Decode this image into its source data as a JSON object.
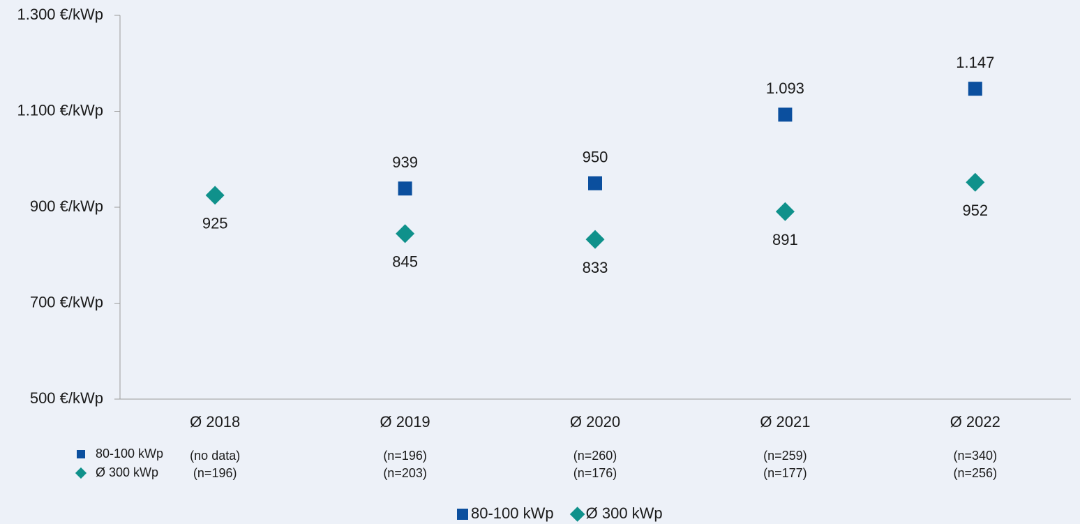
{
  "chart_data": {
    "type": "scatter",
    "categories": [
      "Ø 2018",
      "Ø 2019",
      "Ø 2020",
      "Ø 2021",
      "Ø 2022"
    ],
    "series": [
      {
        "name": "80-100 kWp",
        "color": "#0b4f9e",
        "marker": "square",
        "values": [
          null,
          939,
          950,
          1093,
          1147
        ],
        "value_labels": [
          null,
          "939",
          "950",
          "1.093",
          "1.147"
        ]
      },
      {
        "name": "Ø 300 kWp",
        "color": "#0f918b",
        "marker": "diamond",
        "values": [
          925,
          845,
          833,
          891,
          952
        ],
        "value_labels": [
          "925",
          "845",
          "833",
          "891",
          "952"
        ]
      }
    ],
    "sample_sizes": [
      [
        "(no data)",
        "(n=196)",
        "(n=260)",
        "(n=259)",
        "(n=340)"
      ],
      [
        "(n=196)",
        "(n=203)",
        "(n=176)",
        "(n=177)",
        "(n=256)"
      ]
    ],
    "ylim": [
      500,
      1300
    ],
    "yticks": [
      {
        "value": 500,
        "label": "500 €/kWp"
      },
      {
        "value": 700,
        "label": "700 €/kWp"
      },
      {
        "value": 900,
        "label": "900 €/kWp"
      },
      {
        "value": 1100,
        "label": "1.100 €/kWp"
      },
      {
        "value": 1300,
        "label": "1.300 €/kWp"
      }
    ],
    "grid": false,
    "legend": "bottom"
  }
}
